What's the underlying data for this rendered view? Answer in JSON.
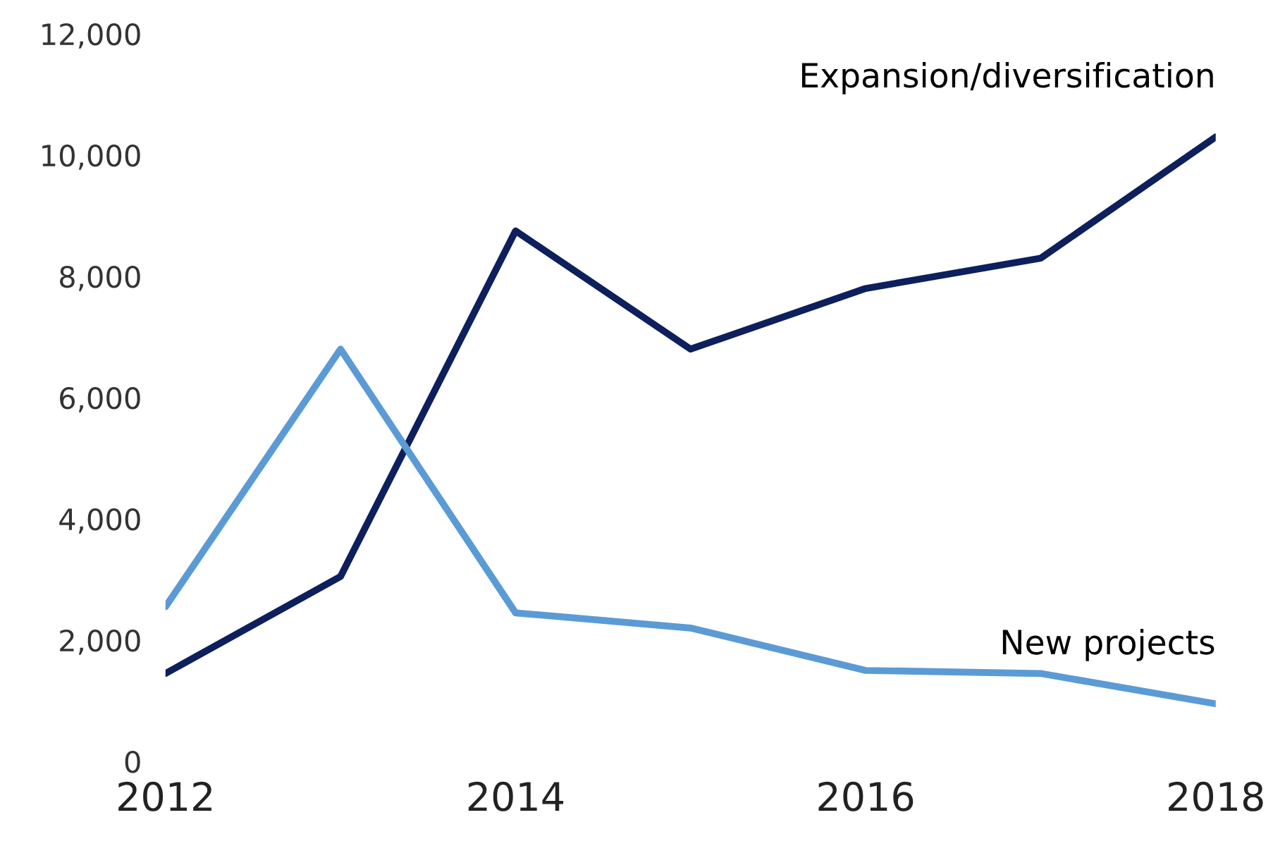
{
  "chart_data": {
    "type": "line",
    "x": [
      2012,
      2013,
      2014,
      2015,
      2016,
      2017,
      2018
    ],
    "series": [
      {
        "name": "Expansion/diversification",
        "color": "#0d1f5c",
        "values": [
          1450,
          3050,
          8750,
          6800,
          7800,
          8300,
          10300
        ]
      },
      {
        "name": "New projects",
        "color": "#5b9bd5",
        "values": [
          2550,
          6800,
          2450,
          2200,
          1500,
          1450,
          950
        ]
      }
    ],
    "xlim": [
      2012,
      2018
    ],
    "xticks": [
      2012,
      2014,
      2016,
      2018
    ],
    "ylim": [
      0,
      12000
    ],
    "yticks": [
      {
        "value": 0,
        "label": "0"
      },
      {
        "value": 2000,
        "label": "2,000"
      },
      {
        "value": 4000,
        "label": "4,000"
      },
      {
        "value": 6000,
        "label": "6,000"
      },
      {
        "value": 8000,
        "label": "8,000"
      },
      {
        "value": 10000,
        "label": "10,000"
      },
      {
        "value": 12000,
        "label": "12,000"
      }
    ],
    "grid": false,
    "legend": false,
    "marker": "none",
    "line_style": "solid"
  }
}
